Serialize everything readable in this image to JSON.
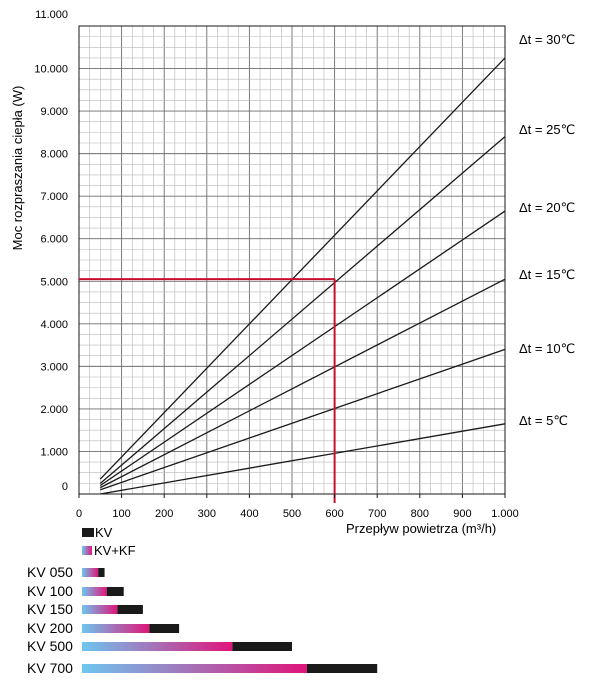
{
  "chart_data": {
    "type": "line",
    "xlabel": "Przepływ powietrza (m³/h)",
    "ylabel": "Moc rozpraszania ciepła (W)",
    "xlim": [
      0,
      1000
    ],
    "ylim": [
      0,
      11000
    ],
    "x_ticks": [
      "0",
      "100",
      "200",
      "300",
      "400",
      "500",
      "600",
      "700",
      "800",
      "900",
      "1.000"
    ],
    "y_ticks": [
      "0",
      "1.000",
      "2.000",
      "3.000",
      "4.000",
      "5.000",
      "6.000",
      "7.000",
      "8.000",
      "9.000",
      "10.000",
      "11.000"
    ],
    "grid": true,
    "series": [
      {
        "name": "Δt = 5℃",
        "x": [
          50,
          1000
        ],
        "y": [
          0,
          1650
        ]
      },
      {
        "name": "Δt = 10℃",
        "x": [
          50,
          1000
        ],
        "y": [
          100,
          3400
        ]
      },
      {
        "name": "Δt = 15℃",
        "x": [
          50,
          1000
        ],
        "y": [
          150,
          5050
        ]
      },
      {
        "name": "Δt = 20℃",
        "x": [
          50,
          1000
        ],
        "y": [
          200,
          6650
        ]
      },
      {
        "name": "Δt = 25℃",
        "x": [
          50,
          1000
        ],
        "y": [
          250,
          8400
        ]
      },
      {
        "name": "Δt = 30℃",
        "x": [
          50,
          1000
        ],
        "y": [
          350,
          10250
        ]
      }
    ],
    "reference": {
      "x": 600,
      "y": 5050,
      "color": "#c8102e"
    }
  },
  "legend": {
    "kv": "KV",
    "kvkf": "KV+KF"
  },
  "models": [
    {
      "label": "KV 050",
      "kvkf_max": 45,
      "kv_max": 60
    },
    {
      "label": "KV 100",
      "kvkf_max": 65,
      "kv_max": 105
    },
    {
      "label": "KV 150",
      "kvkf_max": 90,
      "kv_max": 150
    },
    {
      "label": "KV 200",
      "kvkf_max": 165,
      "kv_max": 235
    },
    {
      "label": "KV 500",
      "kvkf_max": 360,
      "kv_max": 500
    },
    {
      "label": "KV 700",
      "kvkf_max": 535,
      "kv_max": 700
    }
  ],
  "colors": {
    "grid": "#b8b8b8",
    "curve": "#1a1a1a",
    "bar_kv": "#1a1a1a",
    "gradient_start": "#6ec6f0",
    "gradient_end": "#e0157a",
    "reference": "#c8102e"
  }
}
